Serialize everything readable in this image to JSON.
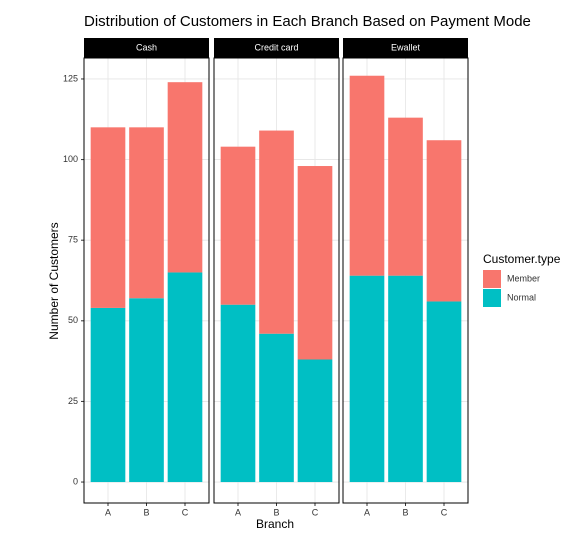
{
  "title": "Distribution of Customers in Each Branch Based on Payment Mode",
  "x_label": "Branch",
  "y_label": "Number of Customers",
  "legend_title": "Customer.type",
  "chart_data": [
    {
      "type": "bar",
      "stacked": true,
      "facet": "Cash",
      "categories": [
        "A",
        "B",
        "C"
      ],
      "series": [
        {
          "name": "Member",
          "color": "#F8766D",
          "values": [
            56,
            53,
            59
          ]
        },
        {
          "name": "Normal",
          "color": "#00BFC4",
          "values": [
            54,
            57,
            65
          ]
        }
      ],
      "ylim": [
        -6.5,
        131.5
      ],
      "yticks": [
        0,
        25,
        50,
        75,
        100,
        125
      ],
      "grid": true
    },
    {
      "type": "bar",
      "stacked": true,
      "facet": "Credit card",
      "categories": [
        "A",
        "B",
        "C"
      ],
      "series": [
        {
          "name": "Member",
          "color": "#F8766D",
          "values": [
            49,
            63,
            60
          ]
        },
        {
          "name": "Normal",
          "color": "#00BFC4",
          "values": [
            55,
            46,
            38
          ]
        }
      ],
      "ylim": [
        -6.5,
        131.5
      ],
      "yticks": [
        0,
        25,
        50,
        75,
        100,
        125
      ],
      "grid": true
    },
    {
      "type": "bar",
      "stacked": true,
      "facet": "Ewallet",
      "categories": [
        "A",
        "B",
        "C"
      ],
      "series": [
        {
          "name": "Member",
          "color": "#F8766D",
          "values": [
            62,
            49,
            50
          ]
        },
        {
          "name": "Normal",
          "color": "#00BFC4",
          "values": [
            64,
            64,
            56
          ]
        }
      ],
      "ylim": [
        -6.5,
        131.5
      ],
      "yticks": [
        0,
        25,
        50,
        75,
        100,
        125
      ],
      "grid": true
    }
  ]
}
